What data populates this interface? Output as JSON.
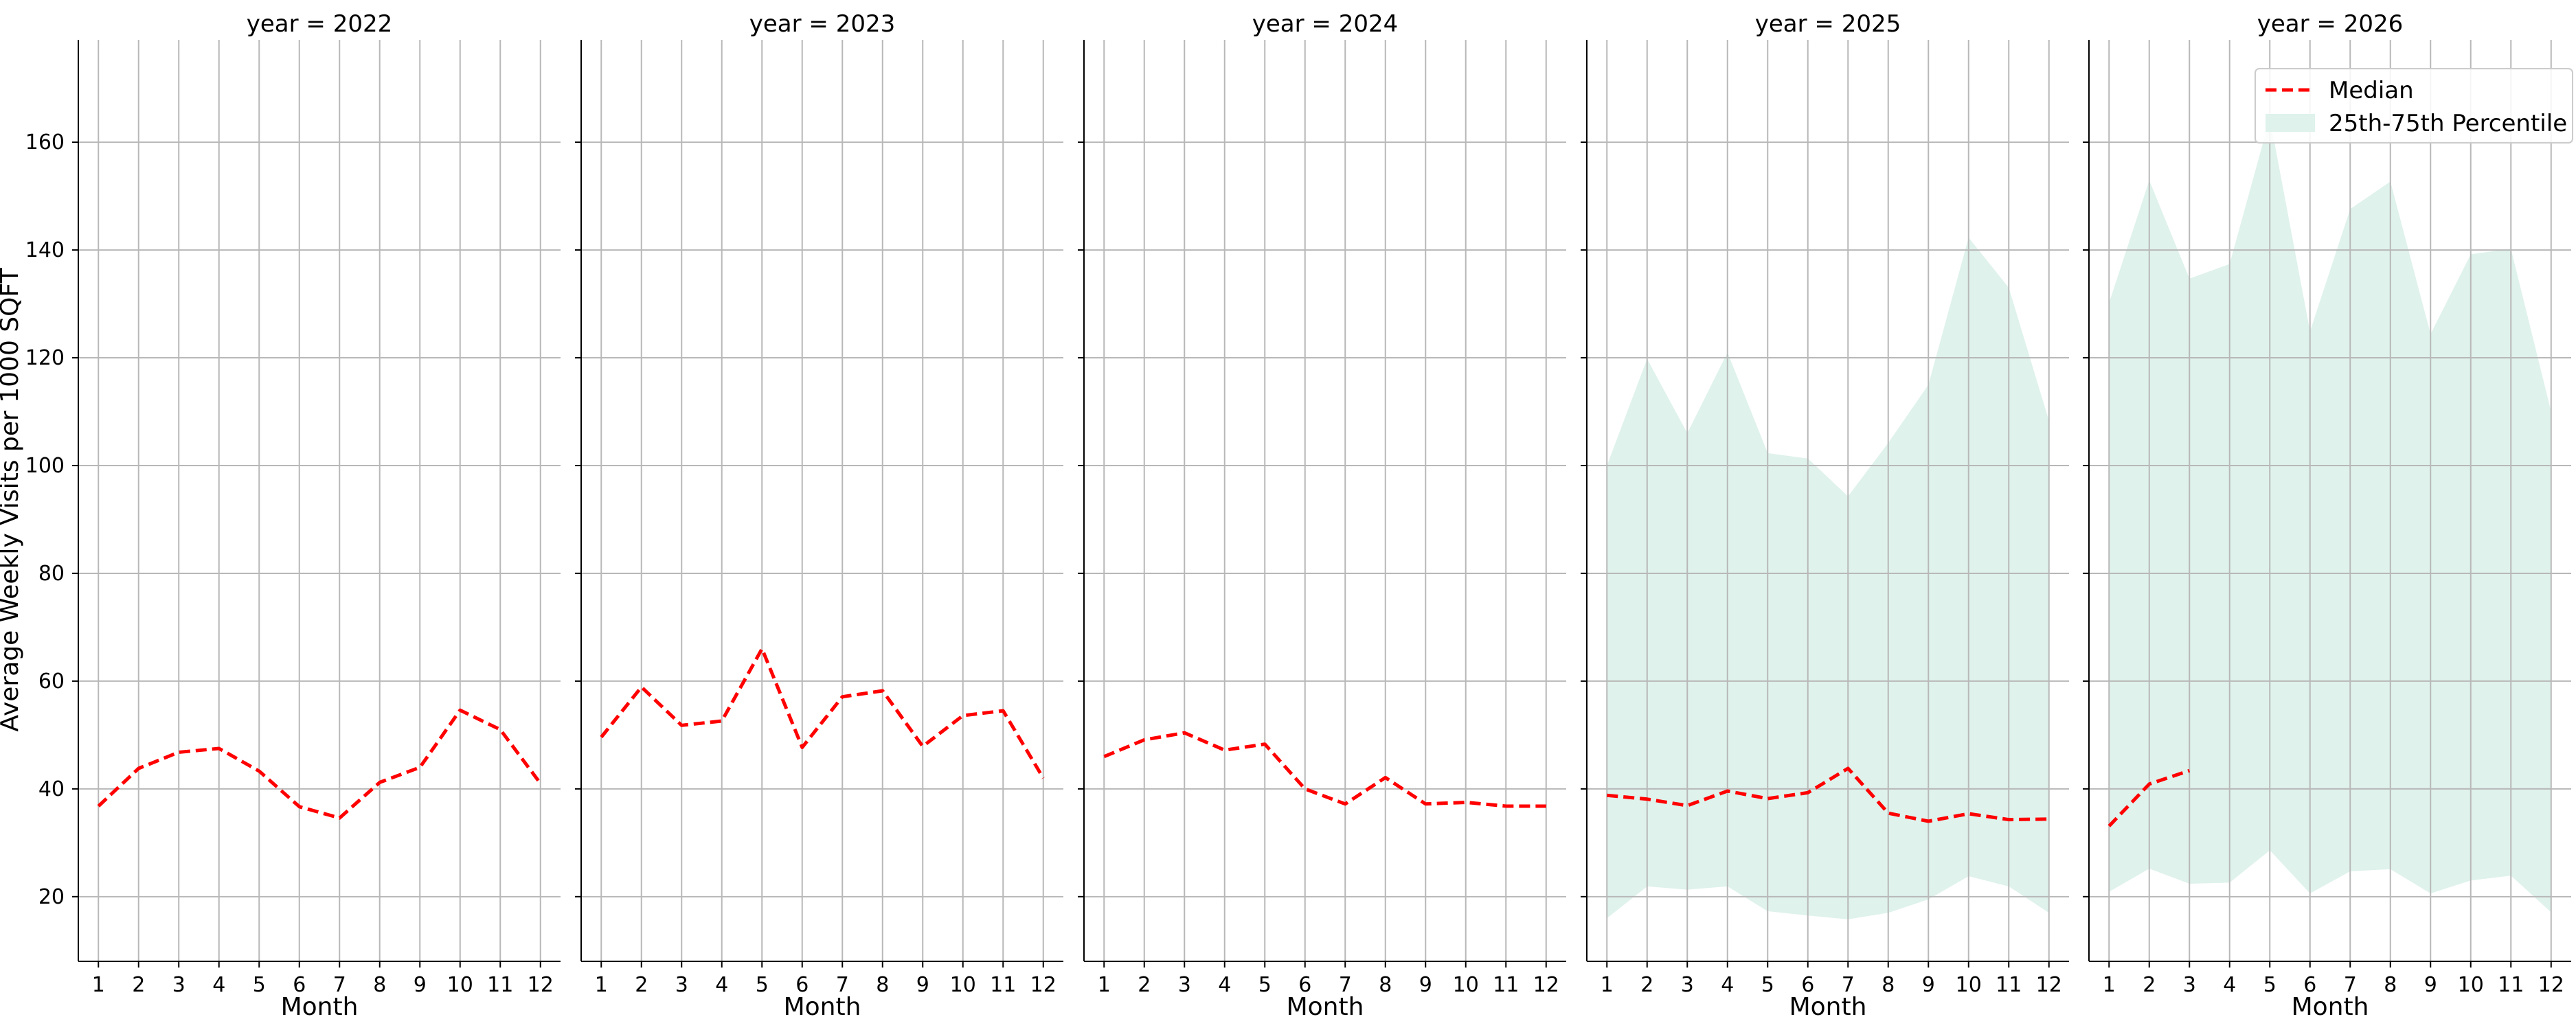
{
  "chart_data": {
    "type": "line",
    "facet_titles": [
      "year = 2022",
      "year = 2023",
      "year = 2024",
      "year = 2025",
      "year = 2026"
    ],
    "xlabel": "Month",
    "ylabel": "Average Weekly Visits per 1000 SQFT",
    "x_ticks": [
      "1",
      "2",
      "3",
      "4",
      "5",
      "6",
      "7",
      "8",
      "9",
      "10",
      "11",
      "12"
    ],
    "y_ticks": [
      "20",
      "40",
      "60",
      "80",
      "100",
      "120",
      "140",
      "160"
    ],
    "ylim": [
      8,
      179
    ],
    "xlim": [
      0.5,
      12.5
    ],
    "grid": true,
    "legend": {
      "position": "top-right",
      "entries": [
        "Median",
        "25th-75th Percentile"
      ]
    },
    "colors": {
      "median": "#ff0000",
      "band": "#dff2ec",
      "grid": "#b8b8b8",
      "axis": "#000000"
    },
    "panels": [
      {
        "year": 2022,
        "x": [
          1,
          2,
          3,
          4,
          5,
          6,
          7,
          8,
          9,
          10,
          11,
          12
        ],
        "median": [
          36.8,
          43.8,
          46.8,
          47.5,
          43.3,
          36.7,
          34.6,
          41.2,
          44.0,
          54.6,
          51.0,
          41.0
        ],
        "p25": null,
        "p75": null
      },
      {
        "year": 2023,
        "x": [
          1,
          2,
          3,
          4,
          5,
          6,
          7,
          8,
          9,
          10,
          11,
          12
        ],
        "median": [
          49.6,
          58.9,
          51.8,
          52.6,
          66.0,
          47.7,
          57.1,
          58.2,
          47.9,
          53.6,
          54.5,
          42.0
        ],
        "p25": null,
        "p75": null
      },
      {
        "year": 2024,
        "x": [
          1,
          2,
          3,
          4,
          5,
          6,
          7,
          8,
          9,
          10,
          11,
          12
        ],
        "median": [
          46.0,
          49.1,
          50.4,
          47.2,
          48.3,
          40.0,
          37.2,
          42.1,
          37.2,
          37.5,
          36.8,
          36.8
        ],
        "p25": null,
        "p75": null
      },
      {
        "year": 2025,
        "x": [
          1,
          2,
          3,
          4,
          5,
          6,
          7,
          8,
          9,
          10,
          11,
          12
        ],
        "median": [
          38.8,
          38.1,
          36.9,
          39.6,
          38.2,
          39.3,
          43.8,
          35.5,
          34.0,
          35.4,
          34.3,
          34.4
        ],
        "p25": [
          16.0,
          21.9,
          21.3,
          21.9,
          17.3,
          16.5,
          15.8,
          17.0,
          19.5,
          23.8,
          21.9,
          17.0
        ],
        "p75": [
          100.0,
          119.8,
          106.0,
          121.0,
          102.3,
          101.3,
          94.3,
          104.2,
          115.0,
          142.3,
          133.0,
          108.3
        ]
      },
      {
        "year": 2026,
        "x": [
          1,
          2,
          3,
          4,
          5,
          6,
          7,
          8,
          9,
          10,
          11,
          12
        ],
        "median": [
          33.1,
          40.9,
          43.4,
          null,
          null,
          null,
          null,
          null,
          null,
          null,
          null,
          null
        ],
        "p25": [
          20.9,
          25.2,
          22.4,
          22.6,
          28.6,
          20.6,
          24.7,
          25.1,
          20.6,
          23.0,
          23.9,
          17.1
        ],
        "p75": [
          130.2,
          152.9,
          134.7,
          137.4,
          164.5,
          124.9,
          147.6,
          152.7,
          124.4,
          139.2,
          140.2,
          110.0
        ]
      }
    ]
  }
}
